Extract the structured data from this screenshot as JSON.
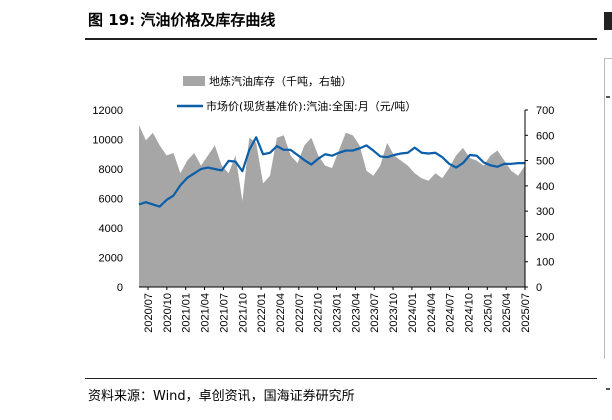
{
  "page": {
    "title": "图 19:  汽油价格及库存曲线",
    "source": "资料来源：Wind，卓创资讯，国海证券研究所"
  },
  "colors": {
    "area": "#a6a6a6",
    "line": "#0b5ea8",
    "axis": "#000000"
  },
  "chart_data": {
    "type": "area+line",
    "legend": [
      {
        "name": "地炼汽油库存（千吨，右轴）",
        "kind": "area"
      },
      {
        "name": "市场价(现货基准价):汽油:全国:月（元/吨）",
        "kind": "line"
      }
    ],
    "x_ticks": [
      "2020/07",
      "2020/10",
      "2021/01",
      "2021/04",
      "2021/07",
      "2021/10",
      "2022/01",
      "2022/04",
      "2022/07",
      "2022/10",
      "2023/01",
      "2023/04",
      "2023/07",
      "2023/10",
      "2024/01",
      "2024/04",
      "2024/07",
      "2024/10",
      "2025/01",
      "2025/04",
      "2025/07"
    ],
    "y_left": {
      "min": 0,
      "max": 12000,
      "ticks": [
        0,
        2000,
        4000,
        6000,
        8000,
        10000,
        12000
      ]
    },
    "y_right": {
      "min": 0,
      "max": 700,
      "ticks": [
        0,
        100,
        200,
        300,
        400,
        500,
        600,
        700
      ]
    },
    "series": [
      {
        "name": "地炼汽油库存（千吨，右轴）",
        "axis": "right",
        "values": [
          640,
          580,
          610,
          560,
          520,
          530,
          450,
          500,
          530,
          480,
          520,
          560,
          480,
          450,
          520,
          340,
          590,
          570,
          410,
          440,
          590,
          600,
          520,
          490,
          560,
          590,
          520,
          480,
          470,
          540,
          610,
          600,
          560,
          460,
          440,
          480,
          570,
          520,
          500,
          480,
          450,
          430,
          420,
          450,
          430,
          470,
          520,
          550,
          510,
          500,
          480,
          520,
          540,
          500,
          460,
          440,
          480
        ]
      },
      {
        "name": "市场价(现货基准价):汽油:全国:月（元/吨）",
        "axis": "left",
        "values": [
          5600,
          5750,
          5600,
          5450,
          5900,
          6200,
          6900,
          7400,
          7700,
          8000,
          8100,
          8000,
          7900,
          8550,
          8500,
          7850,
          9300,
          10150,
          9000,
          9100,
          9550,
          9300,
          9300,
          8950,
          8600,
          8300,
          8700,
          9000,
          8900,
          9100,
          9250,
          9250,
          9400,
          9600,
          9250,
          8850,
          8800,
          8950,
          9050,
          9100,
          9450,
          9100,
          9050,
          9100,
          8800,
          8350,
          8100,
          8400,
          8950,
          8900,
          8450,
          8250,
          8150,
          8350,
          8350,
          8400,
          8400
        ]
      }
    ]
  }
}
